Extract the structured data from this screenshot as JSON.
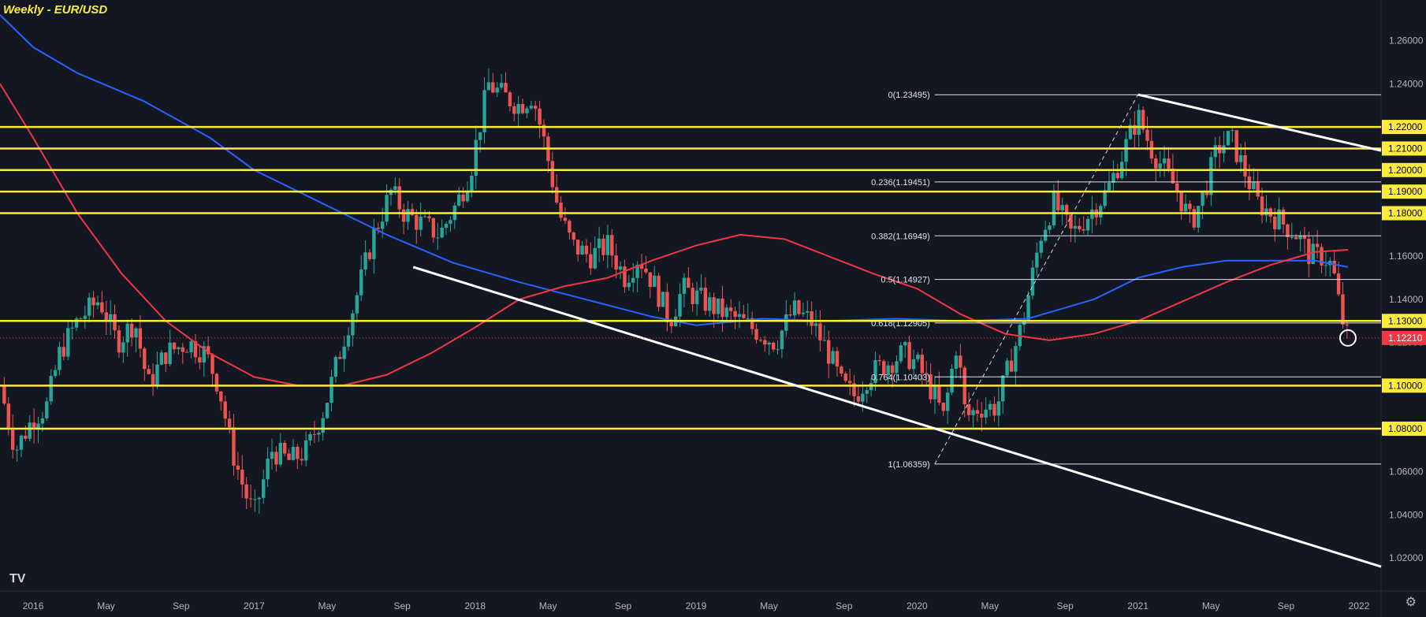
{
  "chart_data": {
    "type": "candlestick",
    "title": "Weekly - EUR/USD",
    "symbol": "EUR/USD",
    "timeframe": "Weekly",
    "ylim": [
      1.0047,
      1.2789
    ],
    "y_ticks": [
      "1.02000",
      "1.04000",
      "1.06000",
      "1.08000",
      "1.10000",
      "1.12000",
      "1.14000",
      "1.16000",
      "1.18000",
      "1.20000",
      "1.22000",
      "1.24000",
      "1.26000"
    ],
    "x_ticks": [
      {
        "label": "2016",
        "t": 2016.0
      },
      {
        "label": "May",
        "t": 2016.33
      },
      {
        "label": "Sep",
        "t": 2016.67
      },
      {
        "label": "2017",
        "t": 2017.0
      },
      {
        "label": "May",
        "t": 2017.33
      },
      {
        "label": "Sep",
        "t": 2017.67
      },
      {
        "label": "2018",
        "t": 2018.0
      },
      {
        "label": "May",
        "t": 2018.33
      },
      {
        "label": "Sep",
        "t": 2018.67
      },
      {
        "label": "2019",
        "t": 2019.0
      },
      {
        "label": "May",
        "t": 2019.33
      },
      {
        "label": "Sep",
        "t": 2019.67
      },
      {
        "label": "2020",
        "t": 2020.0
      },
      {
        "label": "May",
        "t": 2020.33
      },
      {
        "label": "Sep",
        "t": 2020.67
      },
      {
        "label": "2021",
        "t": 2021.0
      },
      {
        "label": "May",
        "t": 2021.33
      },
      {
        "label": "Sep",
        "t": 2021.67
      },
      {
        "label": "2022",
        "t": 2022.0
      }
    ],
    "xlim": [
      2015.85,
      2022.1
    ],
    "price_path": [
      [
        2015.85,
        1.1
      ],
      [
        2015.92,
        1.07
      ],
      [
        2016.0,
        1.085
      ],
      [
        2016.06,
        1.09
      ],
      [
        2016.12,
        1.115
      ],
      [
        2016.2,
        1.13
      ],
      [
        2016.3,
        1.14
      ],
      [
        2016.38,
        1.12
      ],
      [
        2016.46,
        1.13
      ],
      [
        2016.52,
        1.1
      ],
      [
        2016.6,
        1.115
      ],
      [
        2016.7,
        1.12
      ],
      [
        2016.78,
        1.115
      ],
      [
        2016.84,
        1.1
      ],
      [
        2016.9,
        1.07
      ],
      [
        2016.96,
        1.05
      ],
      [
        2017.0,
        1.04
      ],
      [
        2017.08,
        1.07
      ],
      [
        2017.16,
        1.065
      ],
      [
        2017.24,
        1.07
      ],
      [
        2017.32,
        1.09
      ],
      [
        2017.4,
        1.12
      ],
      [
        2017.46,
        1.14
      ],
      [
        2017.54,
        1.17
      ],
      [
        2017.62,
        1.19
      ],
      [
        2017.68,
        1.18
      ],
      [
        2017.76,
        1.175
      ],
      [
        2017.84,
        1.17
      ],
      [
        2017.92,
        1.185
      ],
      [
        2017.98,
        1.2
      ],
      [
        2018.06,
        1.24
      ],
      [
        2018.12,
        1.235
      ],
      [
        2018.2,
        1.23
      ],
      [
        2018.26,
        1.235
      ],
      [
        2018.32,
        1.21
      ],
      [
        2018.38,
        1.18
      ],
      [
        2018.44,
        1.165
      ],
      [
        2018.52,
        1.16
      ],
      [
        2018.6,
        1.165
      ],
      [
        2018.68,
        1.15
      ],
      [
        2018.74,
        1.16
      ],
      [
        2018.82,
        1.145
      ],
      [
        2018.88,
        1.13
      ],
      [
        2018.94,
        1.145
      ],
      [
        2019.02,
        1.14
      ],
      [
        2019.1,
        1.135
      ],
      [
        2019.2,
        1.13
      ],
      [
        2019.28,
        1.125
      ],
      [
        2019.36,
        1.12
      ],
      [
        2019.44,
        1.135
      ],
      [
        2019.52,
        1.13
      ],
      [
        2019.6,
        1.115
      ],
      [
        2019.66,
        1.1
      ],
      [
        2019.72,
        1.095
      ],
      [
        2019.78,
        1.105
      ],
      [
        2019.86,
        1.11
      ],
      [
        2019.94,
        1.115
      ],
      [
        2020.0,
        1.11
      ],
      [
        2020.08,
        1.095
      ],
      [
        2020.12,
        1.085
      ],
      [
        2020.18,
        1.12
      ],
      [
        2020.22,
        1.085
      ],
      [
        2020.28,
        1.09
      ],
      [
        2020.36,
        1.09
      ],
      [
        2020.42,
        1.11
      ],
      [
        2020.48,
        1.13
      ],
      [
        2020.56,
        1.17
      ],
      [
        2020.62,
        1.185
      ],
      [
        2020.7,
        1.17
      ],
      [
        2020.78,
        1.18
      ],
      [
        2020.86,
        1.19
      ],
      [
        2020.94,
        1.21
      ],
      [
        2021.0,
        1.225
      ],
      [
        2021.06,
        1.21
      ],
      [
        2021.12,
        1.2
      ],
      [
        2021.18,
        1.19
      ],
      [
        2021.24,
        1.175
      ],
      [
        2021.3,
        1.19
      ],
      [
        2021.36,
        1.21
      ],
      [
        2021.42,
        1.215
      ],
      [
        2021.48,
        1.2
      ],
      [
        2021.54,
        1.185
      ],
      [
        2021.6,
        1.18
      ],
      [
        2021.66,
        1.175
      ],
      [
        2021.72,
        1.17
      ],
      [
        2021.78,
        1.16
      ],
      [
        2021.84,
        1.16
      ],
      [
        2021.88,
        1.155
      ],
      [
        2021.92,
        1.132
      ],
      [
        2021.95,
        1.1221
      ]
    ],
    "sma_blue": [
      [
        2015.85,
        1.272
      ],
      [
        2016.0,
        1.257
      ],
      [
        2016.2,
        1.245
      ],
      [
        2016.5,
        1.232
      ],
      [
        2016.8,
        1.215
      ],
      [
        2017.0,
        1.2
      ],
      [
        2017.3,
        1.185
      ],
      [
        2017.6,
        1.17
      ],
      [
        2017.9,
        1.157
      ],
      [
        2018.2,
        1.148
      ],
      [
        2018.5,
        1.14
      ],
      [
        2018.8,
        1.132
      ],
      [
        2019.0,
        1.128
      ],
      [
        2019.3,
        1.131
      ],
      [
        2019.6,
        1.13
      ],
      [
        2019.9,
        1.131
      ],
      [
        2020.2,
        1.13
      ],
      [
        2020.5,
        1.131
      ],
      [
        2020.8,
        1.14
      ],
      [
        2021.0,
        1.15
      ],
      [
        2021.2,
        1.155
      ],
      [
        2021.4,
        1.158
      ],
      [
        2021.6,
        1.158
      ],
      [
        2021.8,
        1.158
      ],
      [
        2021.95,
        1.155
      ]
    ],
    "sma_red": [
      [
        2015.85,
        1.24
      ],
      [
        2016.0,
        1.215
      ],
      [
        2016.2,
        1.18
      ],
      [
        2016.4,
        1.152
      ],
      [
        2016.6,
        1.13
      ],
      [
        2016.8,
        1.115
      ],
      [
        2017.0,
        1.104
      ],
      [
        2017.2,
        1.1
      ],
      [
        2017.4,
        1.1
      ],
      [
        2017.6,
        1.105
      ],
      [
        2017.8,
        1.115
      ],
      [
        2018.0,
        1.127
      ],
      [
        2018.2,
        1.14
      ],
      [
        2018.4,
        1.146
      ],
      [
        2018.6,
        1.15
      ],
      [
        2018.8,
        1.158
      ],
      [
        2019.0,
        1.165
      ],
      [
        2019.2,
        1.17
      ],
      [
        2019.4,
        1.168
      ],
      [
        2019.6,
        1.16
      ],
      [
        2019.8,
        1.152
      ],
      [
        2020.0,
        1.145
      ],
      [
        2020.2,
        1.133
      ],
      [
        2020.4,
        1.124
      ],
      [
        2020.6,
        1.121
      ],
      [
        2020.8,
        1.124
      ],
      [
        2021.0,
        1.13
      ],
      [
        2021.2,
        1.139
      ],
      [
        2021.4,
        1.148
      ],
      [
        2021.6,
        1.156
      ],
      [
        2021.8,
        1.162
      ],
      [
        2021.95,
        1.163
      ]
    ],
    "horizontal_levels": [
      {
        "value": 1.22,
        "label": "1.22000"
      },
      {
        "value": 1.21,
        "label": "1.21000"
      },
      {
        "value": 1.2,
        "label": "1.20000"
      },
      {
        "value": 1.19,
        "label": "1.19000"
      },
      {
        "value": 1.18,
        "label": "1.18000"
      },
      {
        "value": 1.13,
        "label": "1.13000"
      },
      {
        "value": 1.1,
        "label": "1.10000"
      },
      {
        "value": 1.08,
        "label": "1.08000"
      }
    ],
    "current_price": {
      "value": 1.1221,
      "label": "1.12210"
    },
    "fib_levels": [
      {
        "label": "0(1.23495)",
        "value": 1.23495
      },
      {
        "label": "0.236(1.19451)",
        "value": 1.19451
      },
      {
        "label": "0.382(1.16949)",
        "value": 1.16949
      },
      {
        "label": "0.5(1.14927)",
        "value": 1.14927
      },
      {
        "label": "0.618(1.12905)",
        "value": 1.12905
      },
      {
        "label": "0.764(1.10403)",
        "value": 1.10403
      },
      {
        "label": "1(1.06359)",
        "value": 1.06359
      }
    ],
    "trendlines": [
      {
        "from": [
          2017.72,
          1.155
        ],
        "to": [
          2022.1,
          1.016
        ]
      },
      {
        "from": [
          2021.0,
          1.235
        ],
        "to": [
          2022.1,
          1.209
        ]
      }
    ],
    "colors": {
      "up": "#26a69a",
      "down": "#ef5350",
      "level": "#ffeb3b",
      "blue_ma": "#2962ff",
      "red_ma": "#f23645",
      "background": "#131722",
      "text": "#b2b5be",
      "current": "#f23645"
    }
  }
}
